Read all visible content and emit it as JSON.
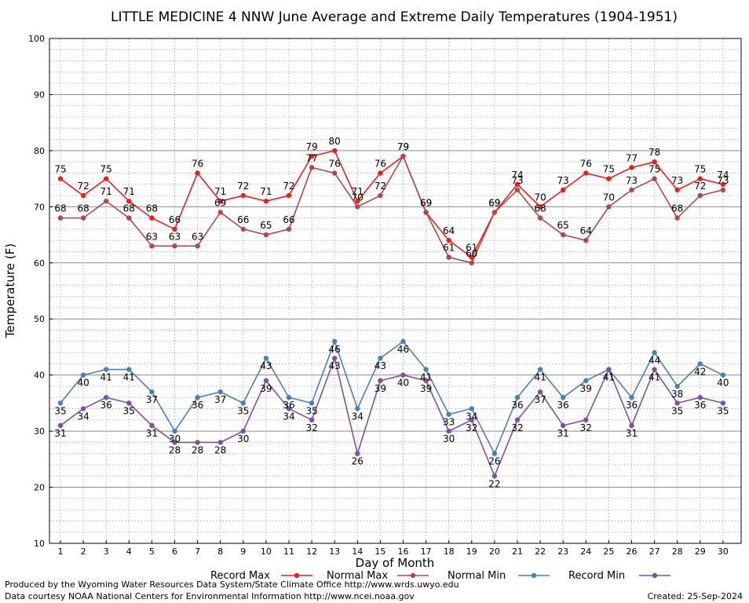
{
  "chart_data": {
    "type": "line",
    "title": "LITTLE MEDICINE 4 NNW June Average and Extreme Daily Temperatures (1904-1951)",
    "xlabel": "Day of Month",
    "ylabel": "Temperature (F)",
    "ylim": [
      10,
      100
    ],
    "y_ticks": [
      10,
      20,
      30,
      40,
      50,
      60,
      70,
      80,
      90,
      100
    ],
    "categories": [
      1,
      2,
      3,
      4,
      5,
      6,
      7,
      8,
      9,
      10,
      11,
      12,
      13,
      14,
      15,
      16,
      17,
      18,
      19,
      20,
      21,
      22,
      23,
      24,
      25,
      26,
      27,
      28,
      29,
      30
    ],
    "grid": true,
    "legend_position": "bottom",
    "series": [
      {
        "name": "Record Max",
        "color": "#ee1c1c",
        "values": [
          75,
          72,
          75,
          71,
          68,
          66,
          76,
          71,
          72,
          71,
          72,
          79,
          80,
          71,
          76,
          79,
          69,
          64,
          61,
          69,
          74,
          70,
          73,
          76,
          75,
          77,
          78,
          73,
          75,
          74
        ]
      },
      {
        "name": "Normal Max",
        "color": "#b04848",
        "values": [
          68,
          68,
          71,
          68,
          63,
          63,
          63,
          69,
          66,
          65,
          66,
          77,
          76,
          70,
          72,
          79,
          69,
          61,
          60,
          69,
          73,
          68,
          65,
          64,
          70,
          73,
          75,
          68,
          72,
          73
        ]
      },
      {
        "name": "Normal Min",
        "color": "#4a80b0",
        "values": [
          35,
          40,
          41,
          41,
          37,
          30,
          36,
          37,
          35,
          43,
          36,
          35,
          46,
          34,
          43,
          46,
          41,
          33,
          34,
          26,
          36,
          41,
          36,
          39,
          41,
          36,
          44,
          38,
          42,
          40
        ]
      },
      {
        "name": "Record Min",
        "color": "#8050a0",
        "values": [
          31,
          34,
          36,
          35,
          31,
          28,
          28,
          28,
          30,
          39,
          34,
          32,
          43,
          26,
          39,
          40,
          39,
          30,
          32,
          22,
          32,
          37,
          31,
          32,
          41,
          31,
          41,
          35,
          36,
          35
        ]
      }
    ]
  },
  "footer": {
    "produced_by": "Produced by the Wyoming Water Resources Data System/State Climate Office http://www.wrds.uwyo.edu",
    "data_courtesy": "Data courtesy NOAA National Centers for Environmental Information http://www.ncei.noaa.gov",
    "created": "Created:  25-Sep-2024"
  }
}
